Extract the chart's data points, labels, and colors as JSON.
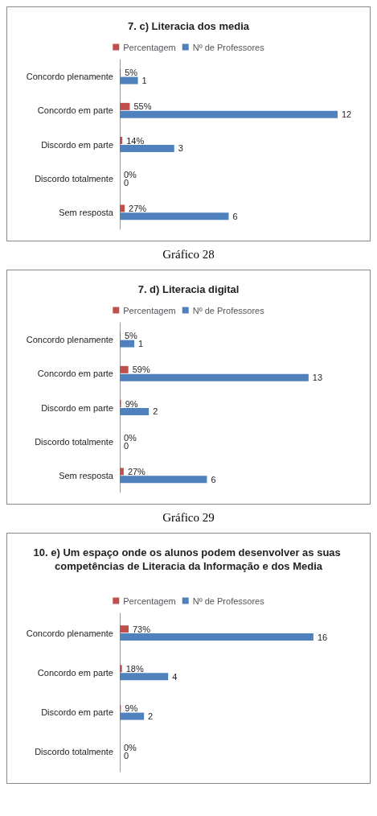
{
  "chart_data": [
    {
      "type": "bar",
      "orientation": "horizontal",
      "title": "7. c) Literacia dos media",
      "categories": [
        "Concordo plenamente",
        "Concordo em parte",
        "Discordo em parte",
        "Discordo totalmente",
        "Sem resposta"
      ],
      "series": [
        {
          "name": "Percentagem",
          "color": "#c0504d",
          "values": [
            0.05,
            0.55,
            0.14,
            0,
            0.27
          ],
          "value_labels": [
            "5%",
            "55%",
            "14%",
            "0%",
            "27%"
          ]
        },
        {
          "name": "Nº de Professores",
          "color": "#4f81bd",
          "values": [
            1,
            12,
            3,
            0,
            6
          ]
        }
      ],
      "data_labels": true,
      "legend": "top",
      "annotations": [
        "Gráfico 28"
      ]
    },
    {
      "type": "bar",
      "orientation": "horizontal",
      "title": "7. d) Literacia digital",
      "categories": [
        "Concordo plenamente",
        "Concordo em parte",
        "Discordo em parte",
        "Discordo totalmente",
        "Sem resposta"
      ],
      "series": [
        {
          "name": "Percentagem",
          "color": "#c0504d",
          "values": [
            0.05,
            0.59,
            0.09,
            0,
            0.27
          ],
          "value_labels": [
            "5%",
            "59%",
            "9%",
            "0%",
            "27%"
          ]
        },
        {
          "name": "Nº de Professores",
          "color": "#4f81bd",
          "values": [
            1,
            13,
            2,
            0,
            6
          ]
        }
      ],
      "data_labels": true,
      "legend": "top",
      "annotations": [
        "Gráfico 29"
      ]
    },
    {
      "type": "bar",
      "orientation": "horizontal",
      "title": "10. e) Um espaço onde os alunos podem desenvolver as suas competências de Literacia da Informação e dos Media",
      "categories": [
        "Concordo plenamente",
        "Concordo em parte",
        "Discordo em parte",
        "Discordo totalmente"
      ],
      "series": [
        {
          "name": "Percentagem",
          "color": "#c0504d",
          "values": [
            0.73,
            0.18,
            0.09,
            0
          ],
          "value_labels": [
            "73%",
            "18%",
            "9%",
            "0%"
          ]
        },
        {
          "name": "Nº de Professores",
          "color": "#4f81bd",
          "values": [
            16,
            4,
            2,
            0
          ]
        }
      ],
      "data_labels": true,
      "legend": "top"
    }
  ]
}
